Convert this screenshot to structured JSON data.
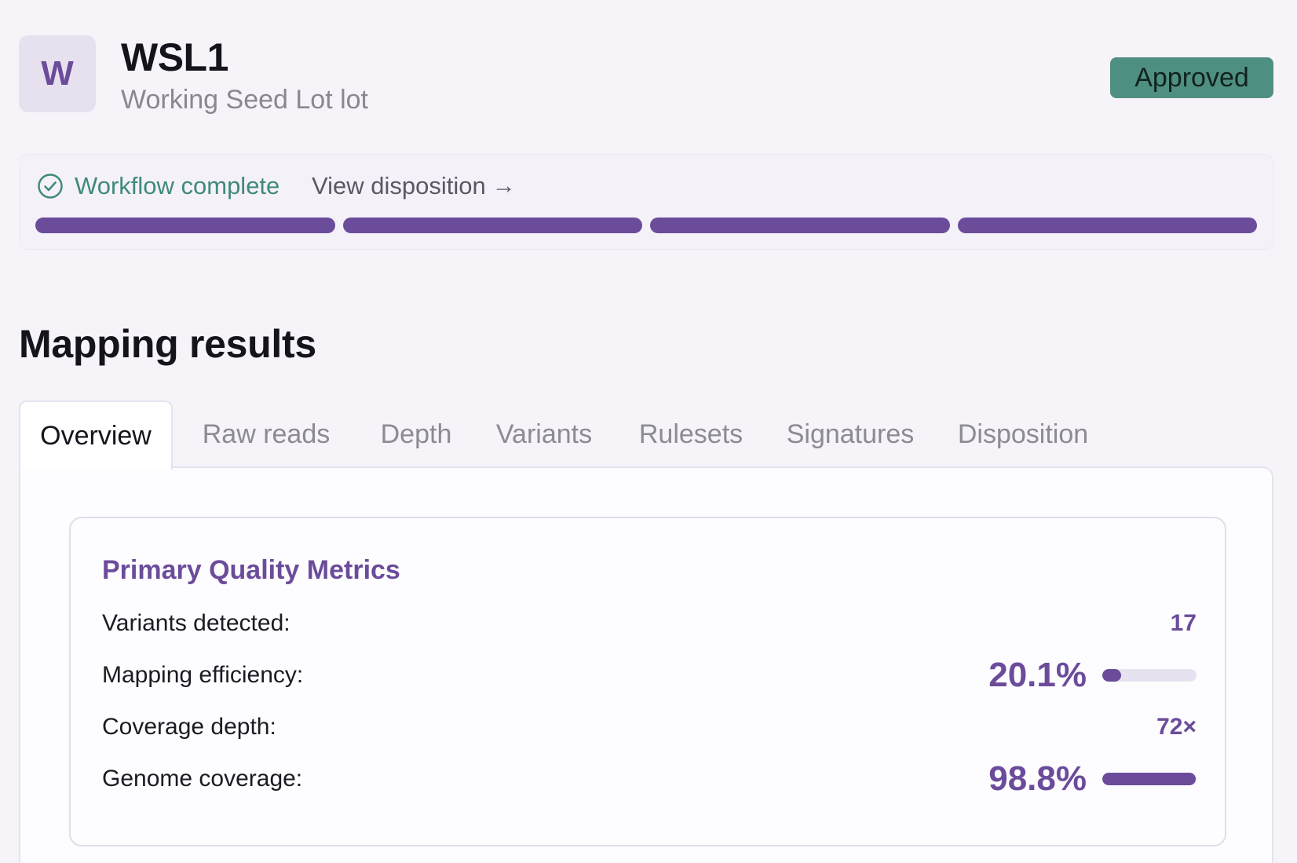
{
  "header": {
    "avatar_letter": "W",
    "title": "WSL1",
    "subtitle": "Working Seed Lot lot",
    "status_badge": "Approved",
    "status_color": "#4f8f82"
  },
  "workflow": {
    "status_label": "Workflow complete",
    "status_icon": "check-circle-icon",
    "link_label": "View disposition",
    "link_icon": "→",
    "steps_total": 4,
    "steps_complete": 4,
    "accent_color": "#6b4c9a"
  },
  "section": {
    "title": "Mapping results"
  },
  "tabs": [
    {
      "label": "Overview",
      "active": true
    },
    {
      "label": "Raw reads",
      "active": false
    },
    {
      "label": "Depth",
      "active": false
    },
    {
      "label": "Variants",
      "active": false
    },
    {
      "label": "Rulesets",
      "active": false
    },
    {
      "label": "Signatures",
      "active": false
    },
    {
      "label": "Disposition",
      "active": false
    }
  ],
  "metrics": {
    "title": "Primary Quality Metrics",
    "rows": [
      {
        "label": "Variants detected:",
        "value": "17"
      },
      {
        "label": "Mapping efficiency:",
        "value": "20.1%",
        "fraction": 0.201
      },
      {
        "label": "Coverage depth:",
        "value": "72×"
      },
      {
        "label": "Genome coverage:",
        "value": "98.8%",
        "fraction": 0.988
      }
    ]
  }
}
